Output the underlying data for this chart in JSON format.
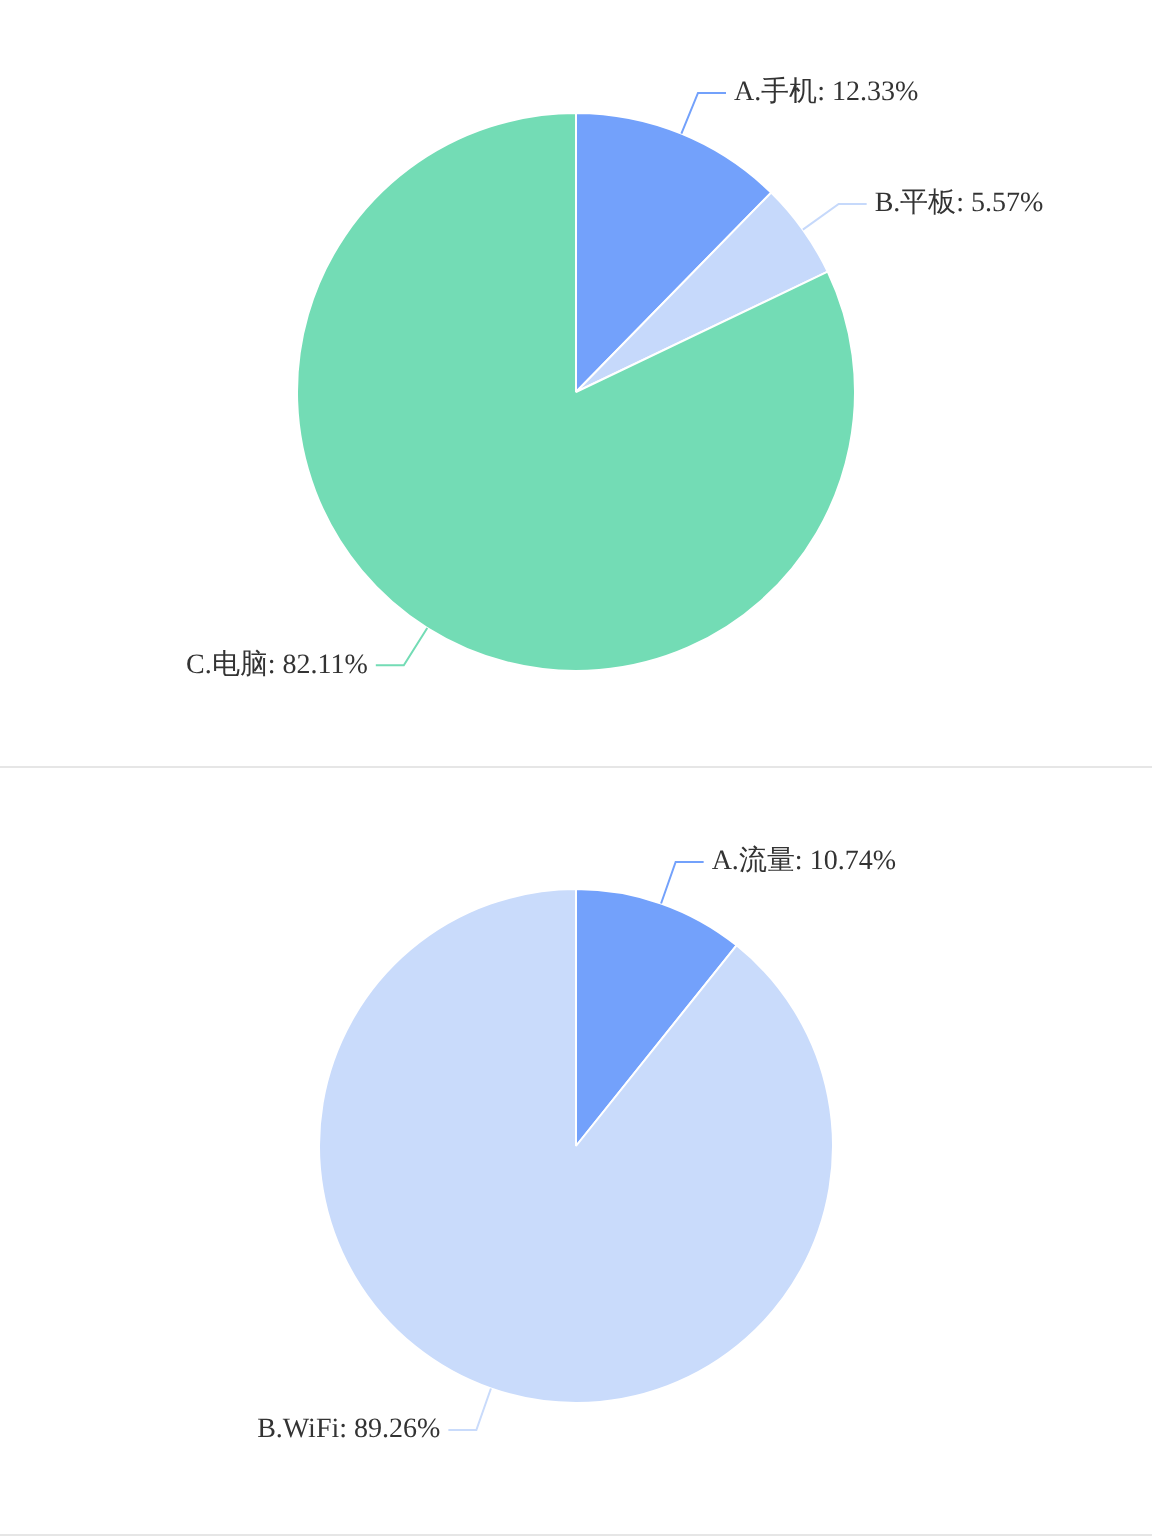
{
  "chart_data": [
    {
      "type": "pie",
      "categories": [
        "A.手机",
        "B.平板",
        "C.电脑"
      ],
      "values": [
        12.33,
        5.57,
        82.11
      ],
      "value_labels": [
        "12.33%",
        "5.57%",
        "82.11%"
      ],
      "colors": [
        "#73a1fb",
        "#c6d9fb",
        "#73dcb5"
      ],
      "legend": false
    },
    {
      "type": "pie",
      "categories": [
        "A.流量",
        "B.WiFi"
      ],
      "values": [
        10.74,
        89.26
      ],
      "value_labels": [
        "10.74%",
        "89.26%"
      ],
      "colors": [
        "#73a1fb",
        "#c9dbfb"
      ],
      "legend": false
    }
  ]
}
